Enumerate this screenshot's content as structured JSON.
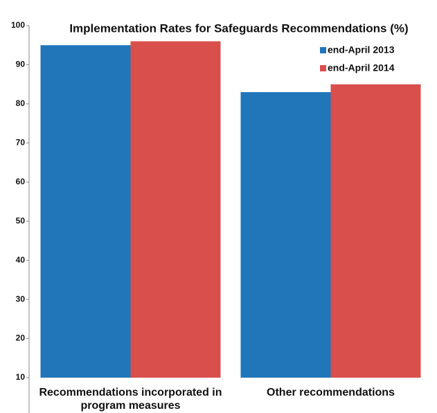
{
  "chart_data": {
    "type": "bar",
    "title": "Implementation Rates for Safeguards Recommendations (%)",
    "categories": [
      "Recommendations incorporated in program measures",
      "Other recommendations"
    ],
    "series": [
      {
        "name": "end-April 2013",
        "color": "#2176b9",
        "values": [
          95,
          83
        ]
      },
      {
        "name": "end-April 2014",
        "color": "#d94f4c",
        "values": [
          96,
          85
        ]
      }
    ],
    "ylim": [
      10,
      100
    ],
    "yticks": [
      10,
      20,
      30,
      40,
      50,
      60,
      70,
      80,
      90,
      100
    ],
    "legend": "upper right",
    "grid": false
  }
}
